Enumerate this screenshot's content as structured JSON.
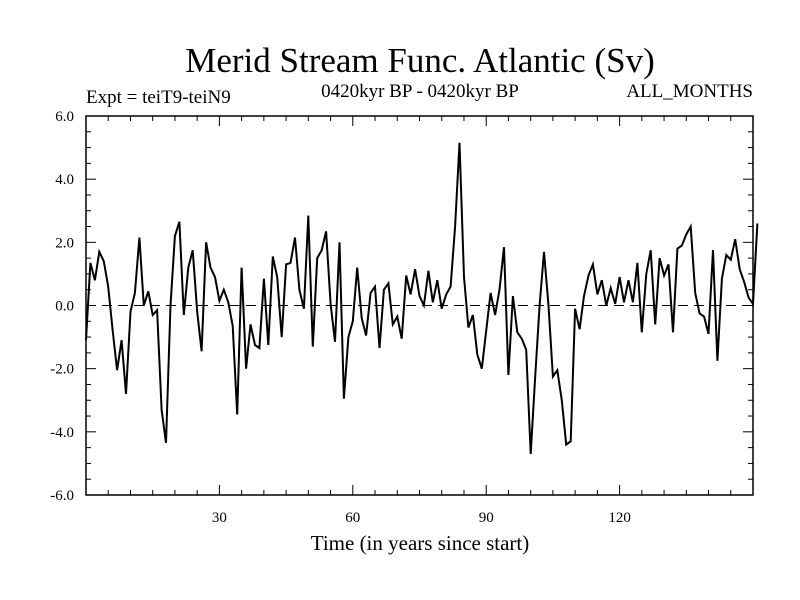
{
  "chart_data": {
    "type": "line",
    "title": "Merid Stream Func. Atlantic (Sv)",
    "subtitle_left": "Expt = teiT9-teiN9",
    "subtitle_center": "0420kyr BP - 0420kyr BP",
    "subtitle_right": "ALL_MONTHS",
    "xlabel": "Time (in years since start)",
    "ylabel": "",
    "xlim": [
      0,
      150
    ],
    "ylim": [
      -6.0,
      6.0
    ],
    "x_ticks": [
      30,
      60,
      90,
      120
    ],
    "x_tick_labels": [
      "30",
      "60",
      "90",
      "120"
    ],
    "y_ticks": [
      -6.0,
      -4.0,
      -2.0,
      0.0,
      2.0,
      4.0,
      6.0
    ],
    "y_tick_labels": [
      "-6.0",
      "-4.0",
      "-2.0",
      "0.0",
      "2.0",
      "4.0",
      "6.0"
    ],
    "reference_line": 0.0,
    "series": [
      {
        "name": "Merid Stream Func. Atlantic",
        "x_start": 0,
        "x_step": 1,
        "values": [
          -1.1,
          1.35,
          0.8,
          1.7,
          1.4,
          0.6,
          -0.8,
          -2.05,
          -1.1,
          -2.8,
          -0.2,
          0.4,
          2.15,
          0.0,
          0.45,
          -0.3,
          -0.15,
          -3.3,
          -4.35,
          0.0,
          2.2,
          2.65,
          -0.3,
          1.2,
          1.75,
          -0.2,
          -1.45,
          2.0,
          1.2,
          0.9,
          0.15,
          0.5,
          0.1,
          -0.65,
          -3.45,
          1.2,
          -2.0,
          -0.6,
          -1.25,
          -1.35,
          0.85,
          -1.25,
          1.55,
          0.9,
          -1.0,
          1.3,
          1.35,
          2.15,
          0.5,
          -0.1,
          2.85,
          -1.3,
          1.5,
          1.75,
          2.35,
          0.05,
          -1.15,
          2.0,
          -2.95,
          -1.0,
          -0.5,
          1.2,
          -0.4,
          -0.95,
          0.4,
          0.6,
          -1.35,
          0.5,
          0.7,
          -0.6,
          -0.35,
          -1.05,
          0.95,
          0.35,
          1.15,
          0.3,
          0.0,
          1.1,
          0.1,
          0.8,
          -0.1,
          0.35,
          0.6,
          2.5,
          5.15,
          0.9,
          -0.7,
          -0.3,
          -1.55,
          -2.0,
          -0.8,
          0.4,
          -0.3,
          0.5,
          1.85,
          -2.2,
          0.3,
          -0.85,
          -1.05,
          -1.4,
          -4.7,
          -2.3,
          0.0,
          1.7,
          0.0,
          -2.25,
          -2.05,
          -3.0,
          -4.4,
          -4.3,
          -0.1,
          -0.75,
          0.3,
          0.95,
          1.3,
          0.35,
          0.8,
          0.0,
          0.55,
          0.05,
          0.9,
          0.1,
          0.8,
          0.1,
          1.35,
          -0.85,
          1.0,
          1.75,
          -0.6,
          1.5,
          0.95,
          1.3,
          -0.85,
          1.8,
          1.9,
          2.25,
          2.5,
          0.4,
          -0.25,
          -0.35,
          -0.9,
          1.75,
          -1.75,
          0.85,
          1.6,
          1.45,
          2.1,
          1.15,
          0.75,
          0.25,
          0.05,
          2.6
        ]
      }
    ]
  }
}
